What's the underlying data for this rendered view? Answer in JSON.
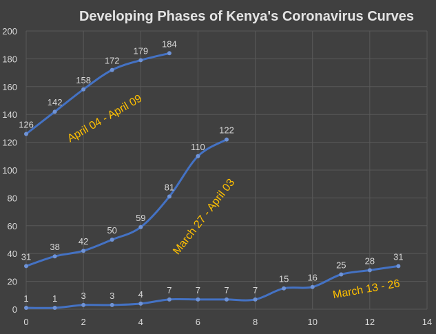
{
  "chart_data": {
    "type": "line",
    "title": "Developing Phases of Kenya's Coronavirus Curves",
    "xlabel": "",
    "ylabel": "",
    "xlim": [
      0,
      14
    ],
    "ylim": [
      0,
      200
    ],
    "xticks": [
      "0",
      "2",
      "4",
      "6",
      "8",
      "10",
      "12",
      "14"
    ],
    "yticks": [
      "0",
      "20",
      "40",
      "60",
      "80",
      "100",
      "120",
      "140",
      "160",
      "180",
      "200"
    ],
    "grid": true,
    "legend": "none",
    "series": [
      {
        "x": [
          0,
          1,
          2,
          3,
          4,
          5
        ],
        "values": [
          126,
          142,
          158,
          172,
          179,
          184
        ],
        "labels": [
          "126",
          "142",
          "158",
          "172",
          "179",
          "184"
        ]
      },
      {
        "x": [
          0,
          1,
          2,
          3,
          4,
          5,
          6,
          7
        ],
        "values": [
          31,
          38,
          42,
          50,
          59,
          81,
          110,
          122
        ],
        "labels": [
          "31",
          "38",
          "42",
          "50",
          "59",
          "81",
          "110",
          "122"
        ]
      },
      {
        "x": [
          0,
          1,
          2,
          3,
          4,
          5,
          6,
          7,
          8,
          9,
          10,
          11,
          12,
          13
        ],
        "values": [
          1,
          1,
          3,
          3,
          4,
          7,
          7,
          7,
          7,
          15,
          16,
          25,
          28,
          31
        ],
        "labels": [
          "1",
          "1",
          "3",
          "3",
          "4",
          "7",
          "7",
          "7",
          "7",
          "15",
          "16",
          "25",
          "28",
          "31"
        ]
      }
    ],
    "annotations": [
      {
        "text": "April 04 - April 09",
        "x": 2.8,
        "y": 135,
        "angle": -30
      },
      {
        "text": "March 27 - April 03",
        "x": 6.3,
        "y": 65,
        "angle": -52
      },
      {
        "text": "March 13 - 26",
        "x": 11.9,
        "y": 12,
        "angle": -10
      }
    ],
    "colors": {
      "line": "#4472c4",
      "marker": "#6f93d6",
      "background": "#404040",
      "grid": "#595959",
      "text": "#d9d9d9",
      "annotation": "#ffc000"
    }
  }
}
